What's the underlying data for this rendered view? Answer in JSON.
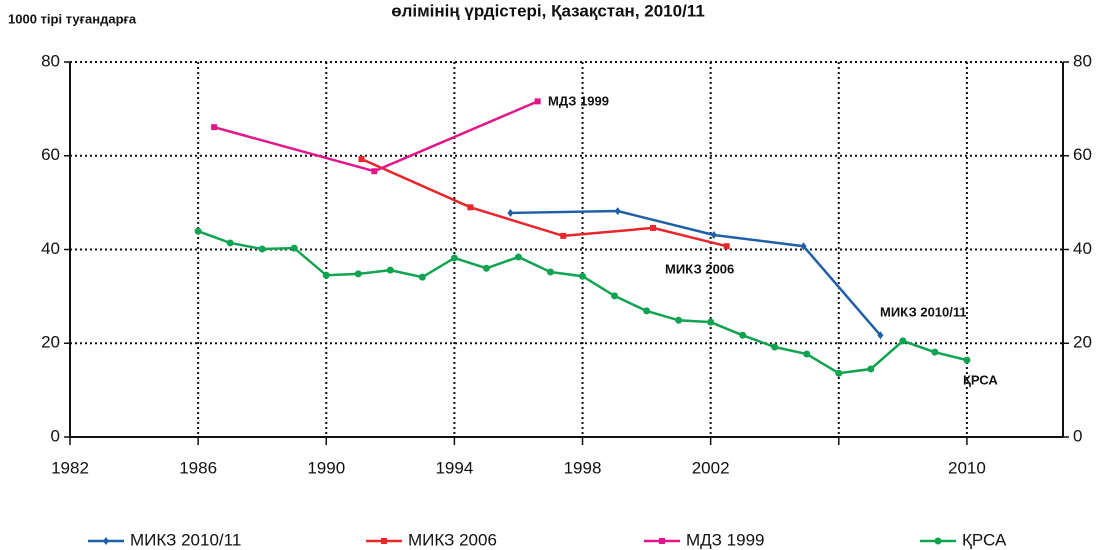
{
  "chart_data": {
    "type": "line",
    "title": "өлімінің үрдістері, Қазақстан, 2010/11",
    "y_label": "1000 тірі туғандарға",
    "xlim": [
      1982,
      2013
    ],
    "xticks": [
      1982,
      1986,
      1990,
      1994,
      1998,
      2002,
      {
        "value": 2006,
        "label": null
      },
      2010
    ],
    "ylim": [
      0,
      80
    ],
    "yticks": [
      0,
      20,
      40,
      60,
      80
    ],
    "y2lim": [
      0,
      80
    ],
    "y2ticks": [
      0,
      20,
      40,
      60,
      80
    ],
    "grid": true,
    "legend": "bottom",
    "series": [
      {
        "name": "МИКЗ 2010/11",
        "color": "#1f5fa8",
        "marker": "diamond",
        "x": [
          1995.75,
          1999.1,
          2002.1,
          2004.9,
          2007.3
        ],
        "values": [
          47.8,
          48.2,
          43.1,
          40.7,
          21.7
        ]
      },
      {
        "name": "МИКЗ 2006",
        "color": "#e8262b",
        "marker": "square",
        "x": [
          1991.1,
          1994.5,
          1997.4,
          2000.2,
          2002.5
        ],
        "values": [
          59.3,
          49.0,
          42.9,
          44.6,
          40.7
        ]
      },
      {
        "name": "МДЗ 1999",
        "color": "#e2168a",
        "marker": "square",
        "x": [
          1986.5,
          1991.5,
          1996.6
        ],
        "values": [
          66.1,
          56.7,
          71.6
        ]
      },
      {
        "name": "ҚРСА",
        "color": "#10a450",
        "marker": "circle",
        "x": [
          1986,
          1987,
          1988,
          1989,
          1990,
          1991,
          1992,
          1993,
          1994,
          1995,
          1996,
          1997,
          1998,
          1999,
          2000,
          2001,
          2002,
          2003,
          2004,
          2005,
          2006,
          2007,
          2008,
          2009,
          2010
        ],
        "values": [
          43.9,
          41.4,
          40.1,
          40.3,
          34.5,
          34.8,
          35.6,
          34.1,
          38.2,
          36.0,
          38.4,
          35.2,
          34.3,
          30.1,
          26.9,
          24.9,
          24.5,
          21.7,
          19.2,
          17.7,
          13.6,
          14.5,
          20.5,
          18.1,
          16.4
        ]
      }
    ],
    "annotations": [
      "МДЗ 1999",
      "МИКЗ 2006",
      "МИКЗ 2010/11",
      "ҚРСА"
    ]
  }
}
